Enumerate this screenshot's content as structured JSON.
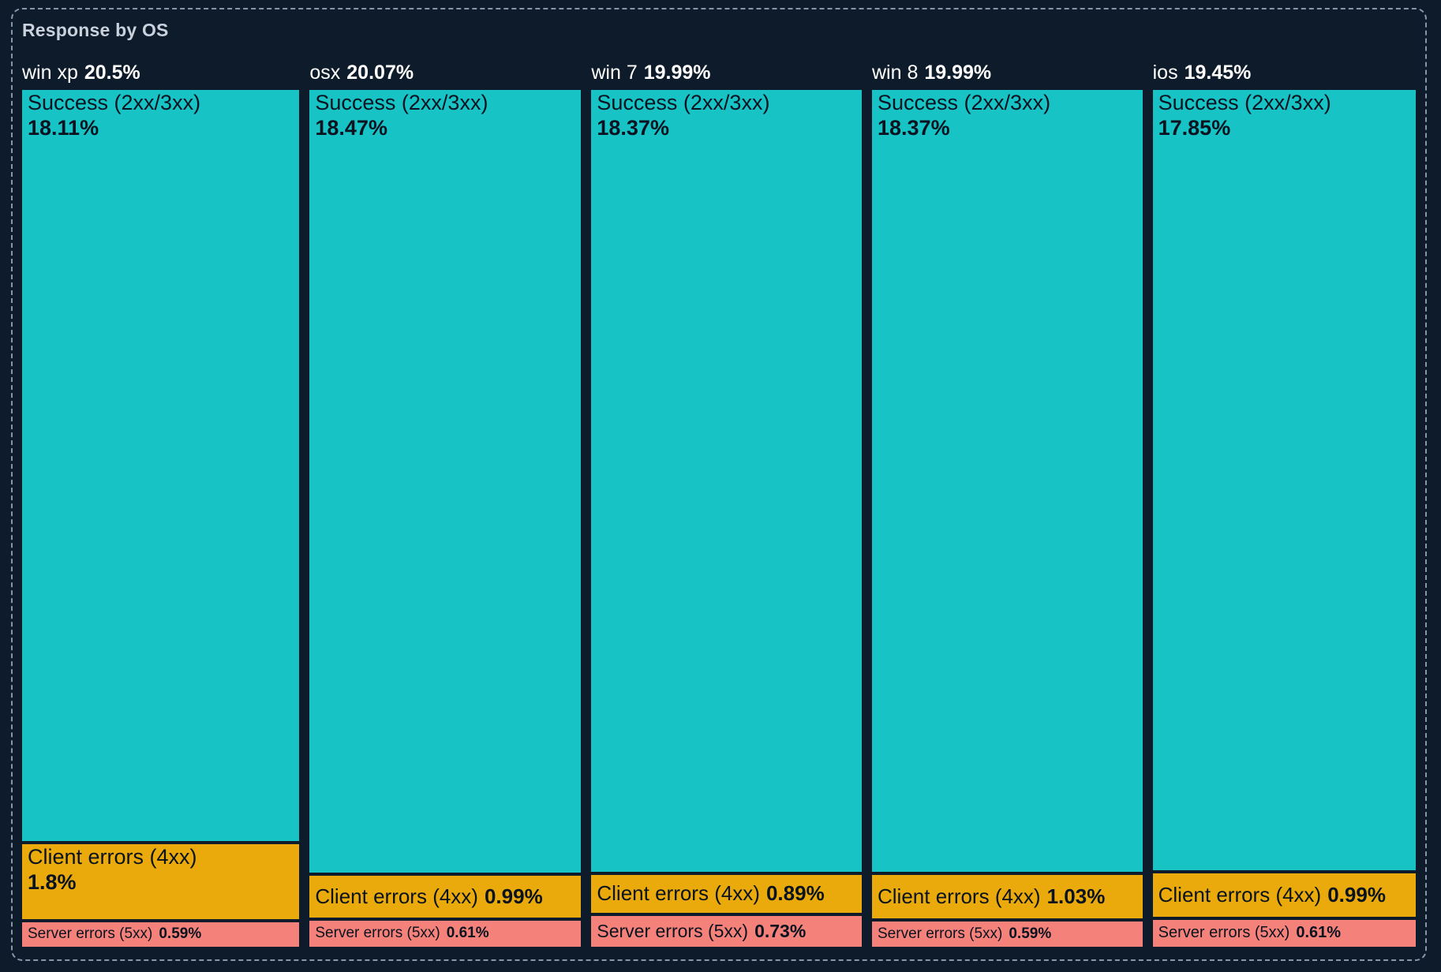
{
  "panel": {
    "title": "Response by OS"
  },
  "chart_data": {
    "type": "treemap",
    "title": "Response by OS",
    "orientation": "columns",
    "legend": false,
    "axes": false,
    "background_color": "#0d1b2b",
    "border_color": "#8896a8",
    "title_color": "#c9d1dc",
    "header_text_color": "#ffffff",
    "segment_text_color": "#0a131f",
    "colors": {
      "success": "#17c3c4",
      "client_errors": "#eaaa0b",
      "server_errors": "#f5827a"
    },
    "series": [
      {
        "name": "win xp",
        "total": 20.5,
        "total_display": "20.5%",
        "segments": [
          {
            "label": "Success (2xx/3xx)",
            "value": 18.11,
            "display": "18.11%",
            "color_key": "success"
          },
          {
            "label": "Client errors (4xx)",
            "value": 1.8,
            "display": "1.8%",
            "color_key": "client_errors"
          },
          {
            "label": "Server errors (5xx)",
            "value": 0.59,
            "display": "0.59%",
            "color_key": "server_errors"
          }
        ]
      },
      {
        "name": "osx",
        "total": 20.07,
        "total_display": "20.07%",
        "segments": [
          {
            "label": "Success (2xx/3xx)",
            "value": 18.47,
            "display": "18.47%",
            "color_key": "success"
          },
          {
            "label": "Client errors (4xx)",
            "value": 0.99,
            "display": "0.99%",
            "color_key": "client_errors"
          },
          {
            "label": "Server errors (5xx)",
            "value": 0.61,
            "display": "0.61%",
            "color_key": "server_errors"
          }
        ]
      },
      {
        "name": "win 7",
        "total": 19.99,
        "total_display": "19.99%",
        "segments": [
          {
            "label": "Success (2xx/3xx)",
            "value": 18.37,
            "display": "18.37%",
            "color_key": "success"
          },
          {
            "label": "Client errors (4xx)",
            "value": 0.89,
            "display": "0.89%",
            "color_key": "client_errors"
          },
          {
            "label": "Server errors (5xx)",
            "value": 0.73,
            "display": "0.73%",
            "color_key": "server_errors"
          }
        ]
      },
      {
        "name": "win 8",
        "total": 19.99,
        "total_display": "19.99%",
        "segments": [
          {
            "label": "Success (2xx/3xx)",
            "value": 18.37,
            "display": "18.37%",
            "color_key": "success"
          },
          {
            "label": "Client errors (4xx)",
            "value": 1.03,
            "display": "1.03%",
            "color_key": "client_errors"
          },
          {
            "label": "Server errors (5xx)",
            "value": 0.59,
            "display": "0.59%",
            "color_key": "server_errors"
          }
        ]
      },
      {
        "name": "ios",
        "total": 19.45,
        "total_display": "19.45%",
        "segments": [
          {
            "label": "Success (2xx/3xx)",
            "value": 17.85,
            "display": "17.85%",
            "color_key": "success"
          },
          {
            "label": "Client errors (4xx)",
            "value": 0.99,
            "display": "0.99%",
            "color_key": "client_errors"
          },
          {
            "label": "Server errors (5xx)",
            "value": 0.61,
            "display": "0.61%",
            "color_key": "server_errors"
          }
        ]
      }
    ]
  }
}
